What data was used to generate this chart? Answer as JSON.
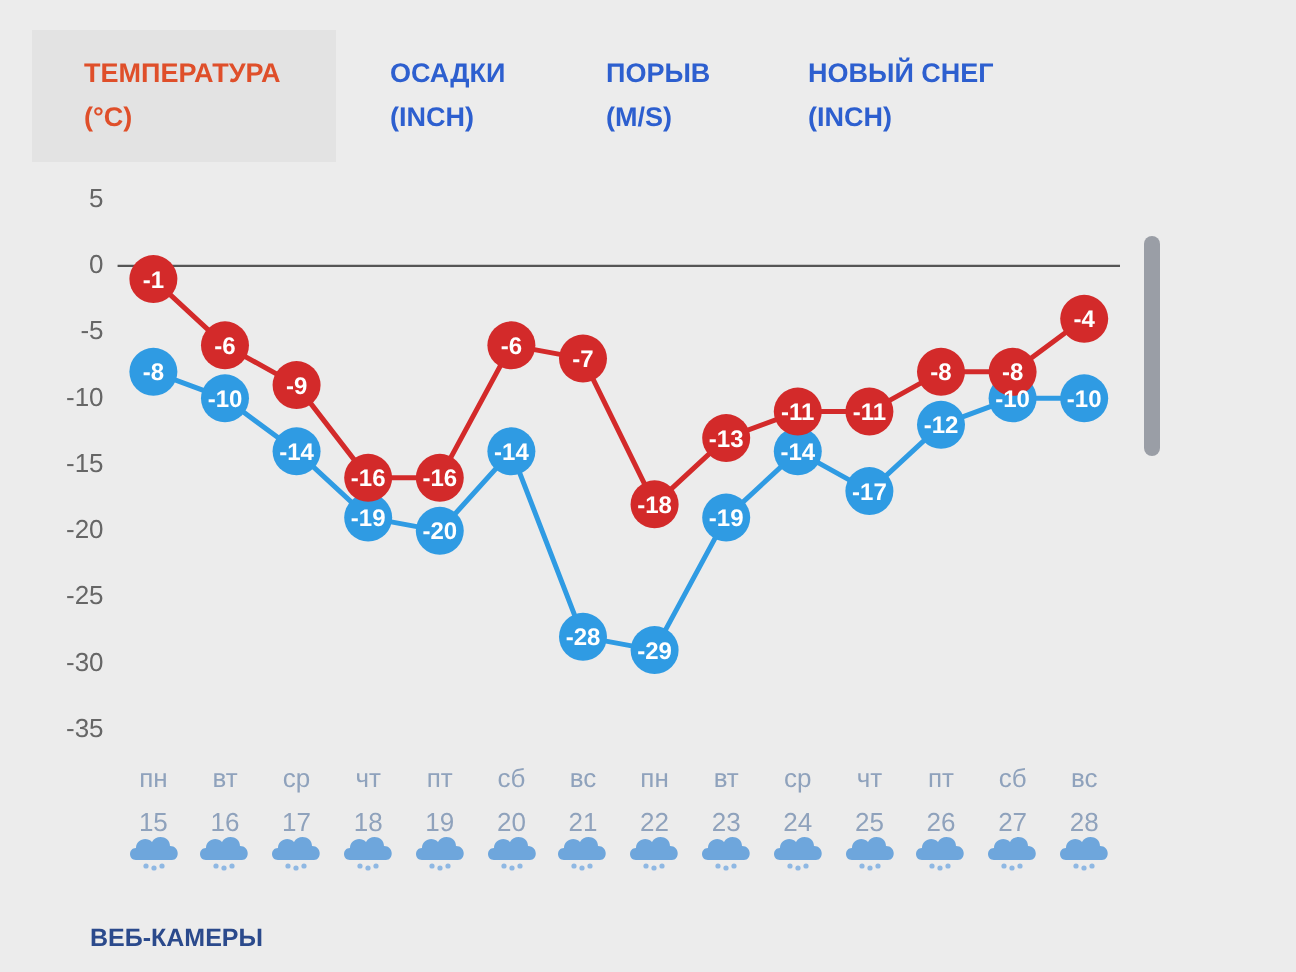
{
  "chart_data": {
    "type": "line",
    "title": "ТЕМПЕРАТУРА (°C)",
    "annotations": [
      "ОСАДКИ (INCH)",
      "ПОРЫВ (M/S)",
      "НОВЫЙ СНЕГ (INCH)",
      "ВЕБ-КАМЕРЫ"
    ],
    "categories": [
      "пн\n15",
      "вт\n16",
      "ср\n17",
      "чт\n18",
      "пт\n19",
      "сб\n20",
      "вс\n21",
      "пн\n22",
      "вт\n23",
      "ср\n24",
      "чт\n25",
      "пт\n26",
      "сб\n27",
      "вс\n28"
    ],
    "series": [
      {
        "color": "#d32a2a",
        "values": [
          -1,
          -6,
          -9,
          -16,
          -16,
          -6,
          -7,
          -18,
          -13,
          -11,
          -11,
          -8,
          -8,
          -4
        ]
      },
      {
        "color": "#2f9be3",
        "values": [
          -8,
          -10,
          -14,
          -19,
          -20,
          -14,
          -28,
          -29,
          -19,
          -14,
          -17,
          -12,
          -10,
          -10
        ]
      }
    ],
    "ylim": [
      -35,
      5
    ],
    "yticks": [
      -35,
      -30,
      -25,
      -20,
      -15,
      -10,
      -5,
      0,
      5
    ],
    "ref_lines": [
      {
        "axis": "y",
        "value": 0,
        "color": "#555555"
      }
    ],
    "data_labels": true,
    "marker": "circle",
    "grid": false
  }
}
